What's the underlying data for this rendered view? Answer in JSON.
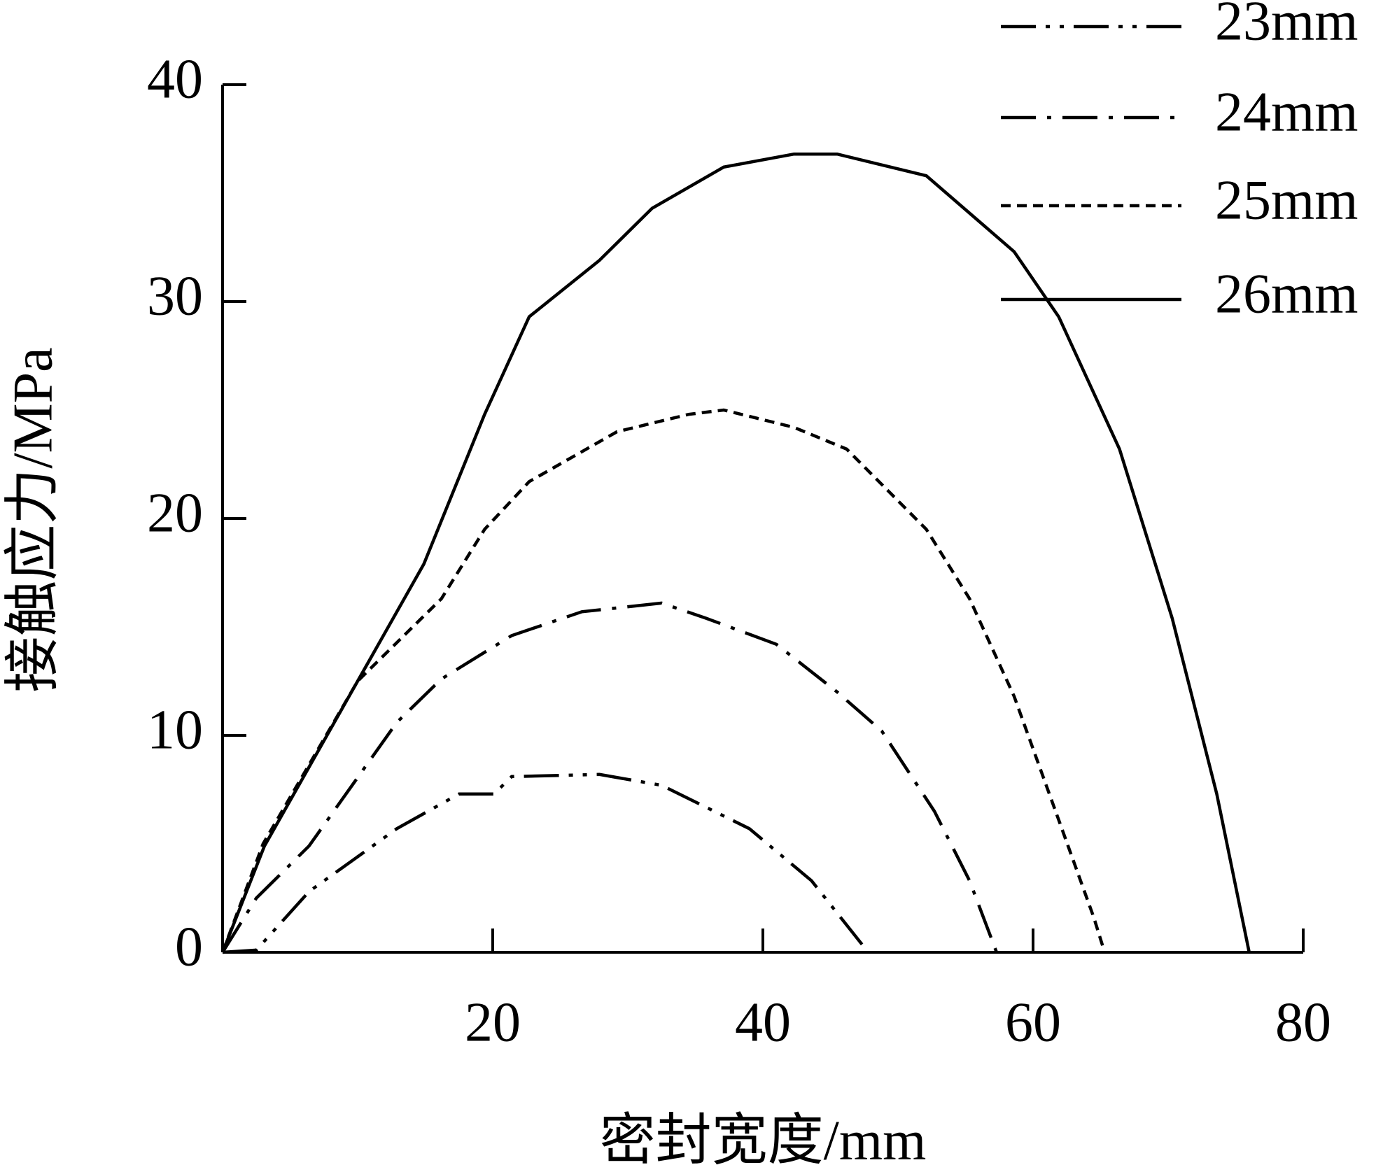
{
  "chart_data": {
    "type": "line",
    "x_label": "密封宽度/mm",
    "y_label": "接触应力/MPa",
    "xlim": [
      0,
      80
    ],
    "ylim": [
      0,
      40
    ],
    "xticks": [
      20,
      40,
      60,
      80
    ],
    "yticks": [
      0,
      10,
      20,
      30,
      40
    ],
    "legend_position": "upper-right",
    "series": [
      {
        "name": "23mm",
        "color": "#000000",
        "line_style": "dash-dot-dot",
        "x": [
          0,
          2.5,
          6.4,
          12.9,
          17.5,
          20.1,
          21.4,
          27.9,
          32.5,
          39,
          43.6,
          47.8
        ],
        "values": [
          0,
          0.1,
          2.8,
          5.7,
          7.3,
          7.3,
          8.1,
          8.2,
          7.7,
          5.7,
          3.3,
          0
        ]
      },
      {
        "name": "24mm",
        "color": "#000000",
        "line_style": "dash-dot",
        "x": [
          0,
          2.5,
          6.4,
          12.9,
          16.2,
          21.4,
          26.6,
          32.5,
          35.8,
          41,
          45.5,
          48.8,
          52.7,
          55.3,
          57.3
        ],
        "values": [
          0,
          2.5,
          4.9,
          10.6,
          12.6,
          14.6,
          15.7,
          16.1,
          15.4,
          14.2,
          12,
          10.2,
          6.5,
          3.3,
          0
        ]
      },
      {
        "name": "25mm",
        "color": "#000000",
        "line_style": "dash",
        "x": [
          0,
          3,
          10,
          16.2,
          19.4,
          22.7,
          29.2,
          34.5,
          37.1,
          42.3,
          46.2,
          52.1,
          55.3,
          58.6,
          61.9,
          64.5,
          65.3
        ],
        "values": [
          0,
          5,
          12.5,
          16.3,
          19.5,
          21.7,
          24,
          24.8,
          25,
          24.2,
          23.2,
          19.5,
          16.3,
          11.8,
          6.1,
          1.6,
          0
        ]
      },
      {
        "name": "26mm",
        "color": "#000000",
        "line_style": "solid",
        "x": [
          0,
          3.1,
          14.9,
          19.4,
          22.7,
          27.9,
          31.8,
          37.1,
          42.3,
          45.5,
          52.1,
          58.6,
          61.9,
          66.4,
          70.3,
          73.6,
          76
        ],
        "values": [
          0,
          4.9,
          17.9,
          24.8,
          29.3,
          31.9,
          34.3,
          36.2,
          36.8,
          36.8,
          35.8,
          32.3,
          29.3,
          23.2,
          15.4,
          7.3,
          0
        ]
      }
    ]
  }
}
